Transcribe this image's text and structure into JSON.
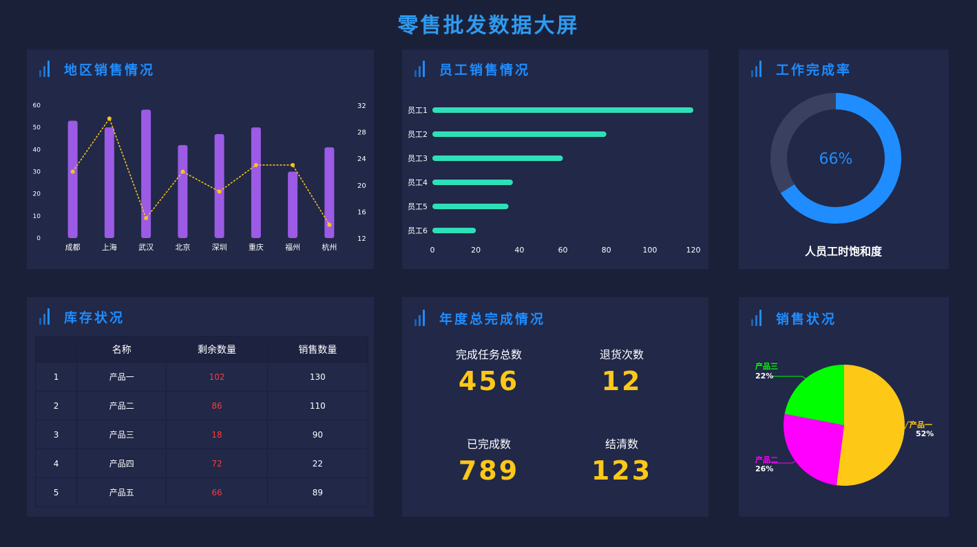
{
  "page": {
    "title": "零售批发数据大屏"
  },
  "panels": {
    "region": {
      "title": "地区销售情况"
    },
    "staff": {
      "title": "员工销售情况"
    },
    "completion": {
      "title": "工作完成率"
    },
    "inventory": {
      "title": "库存状况"
    },
    "annual": {
      "title": "年度总完成情况"
    },
    "sales": {
      "title": "销售状况"
    }
  },
  "colors": {
    "accent": "#1f8dff",
    "bar_purple": "#9c5be4",
    "line_yellow": "#f7c21d",
    "bar_teal": "#2ee0b8",
    "gauge_track": "#3a4160",
    "stat_yellow": "#fdc817",
    "remaining_red": "#ff3b3b",
    "pie_yellow": "#fec817",
    "pie_magenta": "#ff00ff",
    "pie_green": "#00ff00"
  },
  "chart_data": [
    {
      "id": "region_sales",
      "type": "bar+line",
      "categories": [
        "成都",
        "上海",
        "武汉",
        "北京",
        "深圳",
        "重庆",
        "福州",
        "杭州"
      ],
      "series": [
        {
          "type": "bar",
          "axis": "left",
          "values": [
            53,
            50,
            58,
            42,
            47,
            50,
            30,
            41
          ]
        },
        {
          "type": "line",
          "axis": "right",
          "values": [
            22,
            30,
            15,
            22,
            19,
            23,
            23,
            14
          ]
        }
      ],
      "y_left": {
        "min": 0,
        "max": 60,
        "ticks": [
          0,
          10,
          20,
          30,
          40,
          50,
          60
        ]
      },
      "y_right": {
        "min": 12,
        "max": 32,
        "ticks": [
          12,
          16,
          20,
          24,
          28,
          32
        ]
      },
      "grid": false
    },
    {
      "id": "staff_sales",
      "type": "bar",
      "orientation": "horizontal",
      "categories": [
        "员工1",
        "员工2",
        "员工3",
        "员工4",
        "员工5",
        "员工6"
      ],
      "values": [
        120,
        80,
        60,
        37,
        35,
        20
      ],
      "x_axis": {
        "min": 0,
        "max": 120,
        "ticks": [
          0,
          20,
          40,
          60,
          80,
          100,
          120
        ]
      },
      "grid": false
    },
    {
      "id": "completion_rate",
      "type": "gauge",
      "value": 66,
      "center_label": "66%",
      "label": "人员工时饱和度"
    },
    {
      "id": "sales_status",
      "type": "pie",
      "slices": [
        {
          "label": "产品一",
          "pct_label": "52%",
          "value": 52,
          "color": "#fec817"
        },
        {
          "label": "产品二",
          "pct_label": "26%",
          "value": 26,
          "color": "#ff00ff"
        },
        {
          "label": "产品三",
          "pct_label": "22%",
          "value": 22,
          "color": "#00ff00"
        }
      ]
    }
  ],
  "inventory": {
    "headers": [
      "",
      "名称",
      "剩余数量",
      "销售数量"
    ],
    "rows": [
      [
        "1",
        "产品一",
        "102",
        "130"
      ],
      [
        "2",
        "产品二",
        "86",
        "110"
      ],
      [
        "3",
        "产品三",
        "18",
        "90"
      ],
      [
        "4",
        "产品四",
        "72",
        "22"
      ],
      [
        "5",
        "产品五",
        "66",
        "89"
      ]
    ]
  },
  "annual": {
    "stats": [
      {
        "label": "完成任务总数",
        "value": "456"
      },
      {
        "label": "退货次数",
        "value": "12"
      },
      {
        "label": "已完成数",
        "value": "789"
      },
      {
        "label": "结清数",
        "value": "123"
      }
    ]
  }
}
